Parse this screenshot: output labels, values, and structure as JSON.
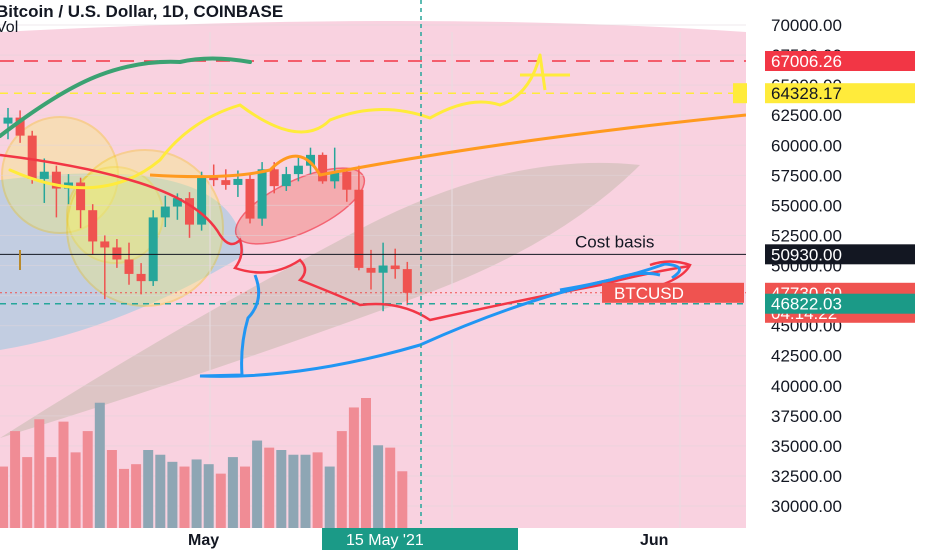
{
  "header": {
    "title": "Bitcoin / U.S. Dollar, 1D, COINBASE",
    "vol_label": "Vol"
  },
  "chart_data": {
    "type": "candlestick",
    "title": "Bitcoin / U.S. Dollar, 1D, COINBASE",
    "ylim": [
      28500,
      72500
    ],
    "yticks": [
      70000,
      67500,
      65000,
      62500,
      60000,
      57500,
      55000,
      52500,
      50000,
      47500,
      45000,
      42500,
      40000,
      37500,
      35000,
      32500,
      30000
    ],
    "ytick_labels": [
      "70000.00",
      "67500.00",
      "65000.00",
      "62500.00",
      "60000.00",
      "57500.00",
      "55000.00",
      "52500.00",
      "50000.00",
      "47500.00",
      "45000.00",
      "42500.00",
      "40000.00",
      "37500.00",
      "35000.00",
      "32500.00",
      "30000.00"
    ],
    "x_labels": [
      "May",
      "Jun"
    ],
    "crosshair_date": "15 May '21",
    "candles": [
      {
        "o": 61800,
        "h": 63100,
        "l": 60500,
        "c": 62300
      },
      {
        "o": 62300,
        "h": 62900,
        "l": 60200,
        "c": 60800
      },
      {
        "o": 60800,
        "h": 61200,
        "l": 56800,
        "c": 57200
      },
      {
        "o": 57200,
        "h": 58900,
        "l": 55200,
        "c": 57800
      },
      {
        "o": 57800,
        "h": 58300,
        "l": 54000,
        "c": 56400
      },
      {
        "o": 56400,
        "h": 57600,
        "l": 55100,
        "c": 56900
      },
      {
        "o": 56900,
        "h": 57300,
        "l": 53100,
        "c": 54600
      },
      {
        "o": 54600,
        "h": 55100,
        "l": 50900,
        "c": 52000
      },
      {
        "o": 52000,
        "h": 52500,
        "l": 47200,
        "c": 51500
      },
      {
        "o": 51500,
        "h": 52200,
        "l": 49800,
        "c": 50500
      },
      {
        "o": 50500,
        "h": 51900,
        "l": 48400,
        "c": 49300
      },
      {
        "o": 49300,
        "h": 50200,
        "l": 47600,
        "c": 48700
      },
      {
        "o": 48700,
        "h": 54600,
        "l": 48300,
        "c": 54000
      },
      {
        "o": 54000,
        "h": 55800,
        "l": 53200,
        "c": 54900
      },
      {
        "o": 54900,
        "h": 56000,
        "l": 53800,
        "c": 55600
      },
      {
        "o": 55600,
        "h": 56100,
        "l": 52300,
        "c": 53400
      },
      {
        "o": 53400,
        "h": 57800,
        "l": 52900,
        "c": 57400
      },
      {
        "o": 57400,
        "h": 58400,
        "l": 56600,
        "c": 57100
      },
      {
        "o": 57100,
        "h": 58000,
        "l": 56300,
        "c": 56700
      },
      {
        "o": 56700,
        "h": 57900,
        "l": 55700,
        "c": 57200
      },
      {
        "o": 57200,
        "h": 57700,
        "l": 53500,
        "c": 53900
      },
      {
        "o": 53900,
        "h": 58600,
        "l": 53300,
        "c": 58000
      },
      {
        "o": 58000,
        "h": 58600,
        "l": 56000,
        "c": 56600
      },
      {
        "o": 56600,
        "h": 58200,
        "l": 56200,
        "c": 57600
      },
      {
        "o": 57600,
        "h": 59100,
        "l": 57000,
        "c": 58300
      },
      {
        "o": 58300,
        "h": 59800,
        "l": 57600,
        "c": 59200
      },
      {
        "o": 59200,
        "h": 59400,
        "l": 56800,
        "c": 57000
      },
      {
        "o": 57000,
        "h": 59800,
        "l": 56400,
        "c": 57800
      },
      {
        "o": 57800,
        "h": 58100,
        "l": 55300,
        "c": 56300
      },
      {
        "o": 56300,
        "h": 58300,
        "l": 49600,
        "c": 49800
      },
      {
        "o": 49800,
        "h": 51300,
        "l": 48000,
        "c": 49400
      },
      {
        "o": 49400,
        "h": 51900,
        "l": 46200,
        "c": 50000
      },
      {
        "o": 50000,
        "h": 51400,
        "l": 48900,
        "c": 49700
      },
      {
        "o": 49700,
        "h": 50300,
        "l": 46700,
        "c": 47730
      }
    ],
    "volume": [
      {
        "v": 26,
        "up": false
      },
      {
        "v": 41,
        "up": false
      },
      {
        "v": 30,
        "up": false
      },
      {
        "v": 46,
        "up": false
      },
      {
        "v": 30,
        "up": false
      },
      {
        "v": 45,
        "up": false
      },
      {
        "v": 32,
        "up": false
      },
      {
        "v": 41,
        "up": false
      },
      {
        "v": 53,
        "up": true
      },
      {
        "v": 33,
        "up": false
      },
      {
        "v": 25,
        "up": false
      },
      {
        "v": 27,
        "up": false
      },
      {
        "v": 33,
        "up": true
      },
      {
        "v": 31,
        "up": true
      },
      {
        "v": 28,
        "up": true
      },
      {
        "v": 26,
        "up": false
      },
      {
        "v": 29,
        "up": true
      },
      {
        "v": 27,
        "up": true
      },
      {
        "v": 23,
        "up": false
      },
      {
        "v": 30,
        "up": true
      },
      {
        "v": 26,
        "up": false
      },
      {
        "v": 37,
        "up": true
      },
      {
        "v": 34,
        "up": false
      },
      {
        "v": 33,
        "up": true
      },
      {
        "v": 31,
        "up": true
      },
      {
        "v": 31,
        "up": true
      },
      {
        "v": 32,
        "up": false
      },
      {
        "v": 26,
        "up": true
      },
      {
        "v": 41,
        "up": false
      },
      {
        "v": 51,
        "up": false
      },
      {
        "v": 55,
        "up": false
      },
      {
        "v": 35,
        "up": true
      },
      {
        "v": 34,
        "up": false
      },
      {
        "v": 24,
        "up": false
      }
    ],
    "levels": {
      "cost_basis": {
        "value": 50930,
        "label": "Cost basis",
        "tag": "50930.00"
      },
      "resistance": {
        "value": 67006.26,
        "tag": "67006.26"
      },
      "target": {
        "value": 64328.17,
        "tag": "64328.17"
      },
      "support": {
        "value": 46822.03,
        "tag": "46822.03"
      },
      "last_price": {
        "value": 47730.6,
        "tag": "47730.60",
        "countdown": "04:14:22",
        "symbol": "BTCUSD"
      }
    },
    "colors": {
      "up": "#26a69a",
      "down": "#ef5350",
      "vol_up": "#8ea6b4",
      "vol_down": "#f08c95",
      "background_zone": "#f9d2e0",
      "support": "#26a69a",
      "resistance": "#f23645",
      "target": "#ffeb3b",
      "cost_basis": "#131722",
      "crosshair": "#26a69a"
    }
  }
}
